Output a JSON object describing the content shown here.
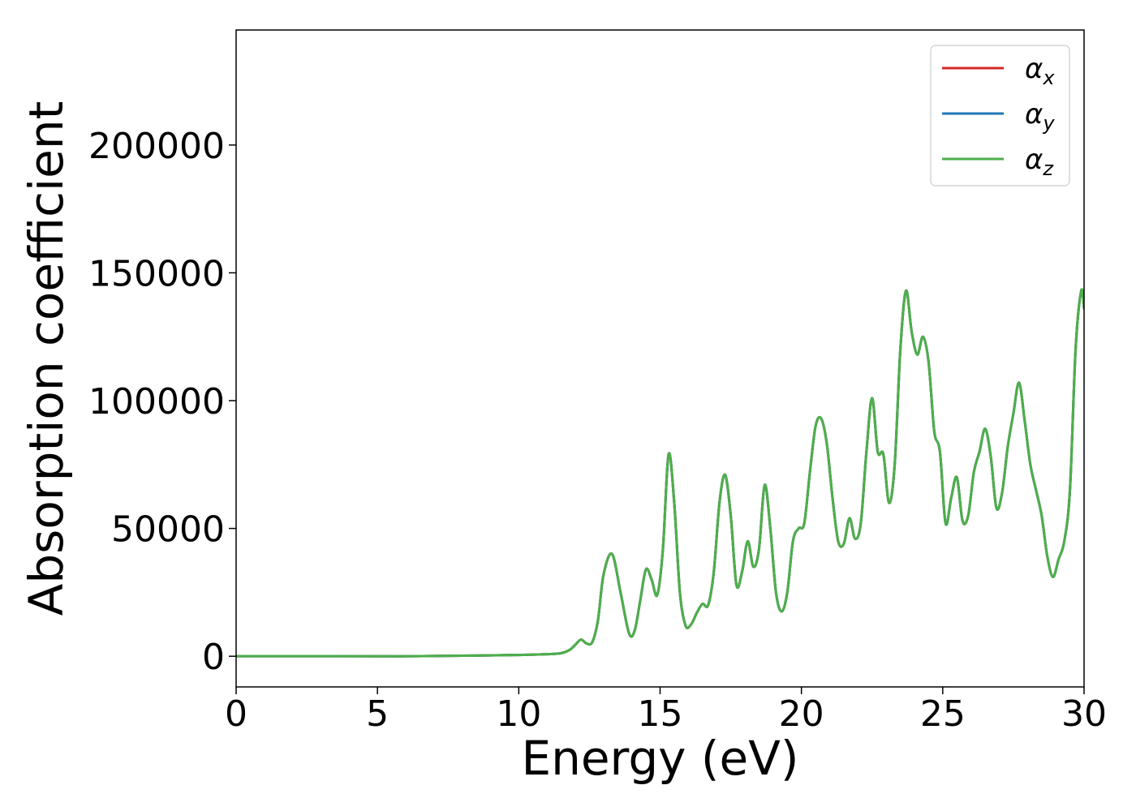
{
  "chart_data": {
    "type": "line",
    "xlabel": "Energy (eV)",
    "ylabel": "Absorption coefficient",
    "xlim": [
      0,
      30
    ],
    "ylim": [
      -12000,
      245000
    ],
    "xticks": [
      0,
      5,
      10,
      15,
      20,
      25,
      30
    ],
    "xtick_labels": [
      "0",
      "5",
      "10",
      "15",
      "20",
      "25",
      "30"
    ],
    "yticks": [
      0,
      50000,
      100000,
      150000,
      200000
    ],
    "ytick_labels": [
      "0",
      "50000",
      "100000",
      "150000",
      "200000"
    ],
    "grid": false,
    "legend_position": "top-right",
    "x": [
      0,
      2,
      4,
      6,
      8,
      10,
      11,
      11.5,
      11.8,
      12.0,
      12.2,
      12.4,
      12.6,
      12.8,
      13.0,
      13.3,
      13.6,
      13.9,
      14.1,
      14.3,
      14.5,
      14.7,
      14.9,
      15.1,
      15.3,
      15.5,
      15.7,
      15.9,
      16.1,
      16.3,
      16.5,
      16.7,
      16.9,
      17.1,
      17.3,
      17.5,
      17.7,
      17.9,
      18.1,
      18.3,
      18.5,
      18.7,
      18.9,
      19.1,
      19.3,
      19.5,
      19.7,
      19.9,
      20.1,
      20.3,
      20.5,
      20.7,
      20.9,
      21.1,
      21.3,
      21.5,
      21.7,
      21.9,
      22.1,
      22.3,
      22.5,
      22.7,
      22.9,
      23.1,
      23.3,
      23.5,
      23.7,
      23.9,
      24.1,
      24.3,
      24.5,
      24.7,
      24.9,
      25.1,
      25.3,
      25.5,
      25.7,
      25.9,
      26.1,
      26.3,
      26.5,
      26.7,
      26.9,
      27.1,
      27.3,
      27.5,
      27.7,
      27.9,
      28.1,
      28.3,
      28.5,
      28.7,
      28.9,
      29.1,
      29.3,
      29.5,
      29.7,
      29.9,
      30.0
    ],
    "series": [
      {
        "name": "αx",
        "color": "#d62728",
        "values": [
          0,
          0,
          0,
          0,
          200,
          500,
          800,
          1200,
          2500,
          4500,
          6500,
          5000,
          5500,
          14000,
          32000,
          40000,
          25000,
          9000,
          10000,
          22000,
          34000,
          30000,
          24000,
          42000,
          79000,
          60000,
          25000,
          12000,
          12500,
          17000,
          20500,
          20000,
          33000,
          60000,
          71000,
          55000,
          28000,
          33000,
          45000,
          35000,
          42000,
          67000,
          50000,
          25000,
          17500,
          25000,
          45000,
          50000,
          52000,
          72000,
          90000,
          93000,
          83000,
          62000,
          45000,
          44000,
          54000,
          46000,
          52000,
          80000,
          101000,
          80000,
          79000,
          60000,
          75000,
          120000,
          143000,
          127000,
          118000,
          125000,
          115000,
          88000,
          80000,
          52000,
          62000,
          70000,
          53000,
          55000,
          72000,
          80000,
          89000,
          78000,
          58000,
          64000,
          82000,
          95000,
          107000,
          92000,
          75000,
          65000,
          55000,
          39000,
          31000,
          38000,
          45000,
          65000,
          120000,
          143000,
          136000
        ]
      },
      {
        "name": "αy",
        "color": "#1f77b4",
        "values": [
          0,
          0,
          0,
          0,
          200,
          500,
          800,
          1200,
          2500,
          4500,
          6500,
          5000,
          5500,
          14000,
          32000,
          40000,
          25000,
          9000,
          10000,
          22000,
          34000,
          30000,
          24000,
          42000,
          79000,
          60000,
          25000,
          12000,
          12500,
          17000,
          20500,
          20000,
          33000,
          60000,
          71000,
          55000,
          28000,
          33000,
          45000,
          35000,
          42000,
          67000,
          50000,
          25000,
          17500,
          25000,
          45000,
          50000,
          52000,
          72000,
          90000,
          93000,
          83000,
          62000,
          45000,
          44000,
          54000,
          46000,
          52000,
          80000,
          101000,
          80000,
          79000,
          60000,
          75000,
          120000,
          143000,
          127000,
          118000,
          125000,
          115000,
          88000,
          80000,
          52000,
          62000,
          70000,
          53000,
          55000,
          72000,
          80000,
          89000,
          78000,
          58000,
          64000,
          82000,
          95000,
          107000,
          92000,
          75000,
          65000,
          55000,
          39000,
          31000,
          38000,
          45000,
          65000,
          120000,
          143000,
          136000
        ]
      },
      {
        "name": "αz",
        "color": "#4daf4a",
        "values": [
          0,
          0,
          0,
          0,
          200,
          500,
          800,
          1200,
          2500,
          4500,
          6500,
          5000,
          5500,
          14000,
          32000,
          40000,
          25000,
          9000,
          10000,
          22000,
          34000,
          30000,
          24000,
          42000,
          79000,
          60000,
          25000,
          12000,
          12500,
          17000,
          20500,
          20000,
          33000,
          60000,
          71000,
          55000,
          28000,
          33000,
          45000,
          35000,
          42000,
          67000,
          50000,
          25000,
          17500,
          25000,
          45000,
          50000,
          52000,
          72000,
          90000,
          93000,
          83000,
          62000,
          45000,
          44000,
          54000,
          46000,
          52000,
          80000,
          101000,
          80000,
          79000,
          60000,
          75000,
          120000,
          143000,
          127000,
          118000,
          125000,
          115000,
          88000,
          80000,
          52000,
          62000,
          70000,
          53000,
          55000,
          72000,
          80000,
          89000,
          78000,
          58000,
          64000,
          82000,
          95000,
          107000,
          92000,
          75000,
          65000,
          55000,
          39000,
          31000,
          38000,
          45000,
          65000,
          120000,
          143000,
          136000
        ]
      }
    ],
    "legend": [
      {
        "symbol": "α",
        "subscript": "x",
        "color": "#d62728"
      },
      {
        "symbol": "α",
        "subscript": "y",
        "color": "#1f77b4"
      },
      {
        "symbol": "α",
        "subscript": "z",
        "color": "#4daf4a"
      }
    ]
  }
}
